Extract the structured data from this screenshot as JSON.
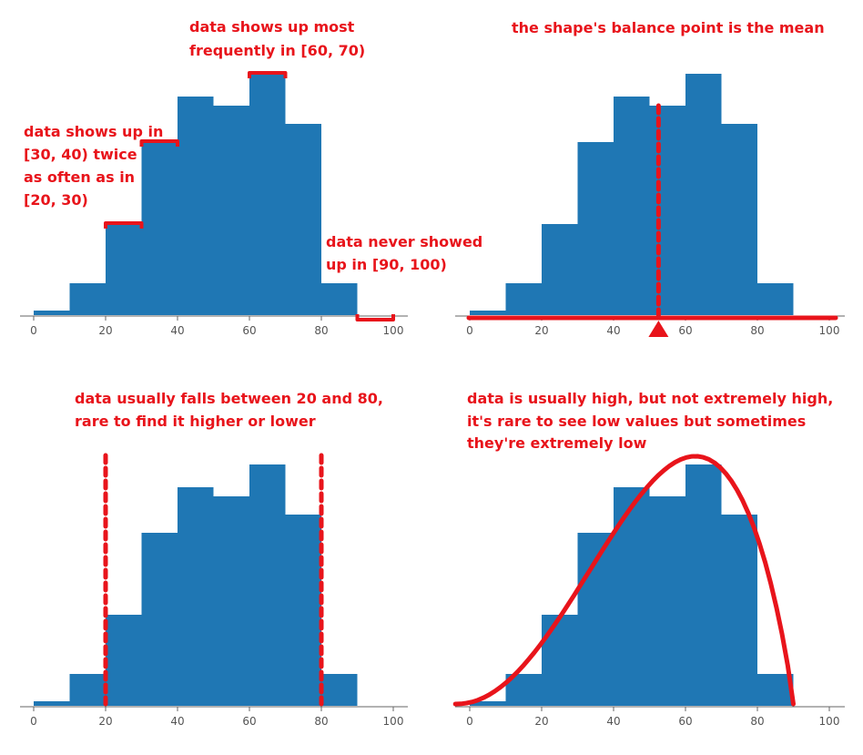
{
  "colors": {
    "bar": "#1f77b4",
    "annotation": "#e8141b",
    "axis": "#666666",
    "tick_text": "#555555"
  },
  "chart_data": [
    {
      "type": "bar",
      "bins": [
        [
          0,
          10
        ],
        [
          10,
          20
        ],
        [
          20,
          30
        ],
        [
          30,
          40
        ],
        [
          40,
          50
        ],
        [
          50,
          60
        ],
        [
          60,
          70
        ],
        [
          70,
          80
        ],
        [
          80,
          90
        ],
        [
          90,
          100
        ]
      ],
      "values": [
        1,
        7,
        20,
        38,
        48,
        46,
        53,
        42,
        7,
        0
      ],
      "xlim": [
        0,
        100
      ],
      "ylim": [
        0,
        56
      ],
      "x_ticks": [
        "0",
        "20",
        "40",
        "60",
        "80",
        "100"
      ],
      "annotations": [
        "data shows up most",
        "frequently in [60, 70)",
        "data shows up in",
        "[30, 40) twice",
        "as often as in",
        "[20, 30)",
        "data never showed",
        "up in [90, 100)"
      ]
    },
    {
      "type": "bar",
      "bins": [
        [
          0,
          10
        ],
        [
          10,
          20
        ],
        [
          20,
          30
        ],
        [
          30,
          40
        ],
        [
          40,
          50
        ],
        [
          50,
          60
        ],
        [
          60,
          70
        ],
        [
          70,
          80
        ],
        [
          80,
          90
        ],
        [
          90,
          100
        ]
      ],
      "values": [
        1,
        7,
        20,
        38,
        48,
        46,
        53,
        42,
        7,
        0
      ],
      "xlim": [
        0,
        100
      ],
      "ylim": [
        0,
        56
      ],
      "x_ticks": [
        "0",
        "20",
        "40",
        "60",
        "80",
        "100"
      ],
      "mean_marker": 52.5,
      "annotations": [
        "the shape's balance point is the mean"
      ]
    },
    {
      "type": "bar",
      "bins": [
        [
          0,
          10
        ],
        [
          10,
          20
        ],
        [
          20,
          30
        ],
        [
          30,
          40
        ],
        [
          40,
          50
        ],
        [
          50,
          60
        ],
        [
          60,
          70
        ],
        [
          70,
          80
        ],
        [
          80,
          90
        ],
        [
          90,
          100
        ]
      ],
      "values": [
        1,
        7,
        20,
        38,
        48,
        46,
        53,
        42,
        7,
        0
      ],
      "xlim": [
        0,
        100
      ],
      "ylim": [
        0,
        56
      ],
      "x_ticks": [
        "0",
        "20",
        "40",
        "60",
        "80",
        "100"
      ],
      "range_markers": [
        20,
        80
      ],
      "annotations": [
        "data usually falls between 20 and 80,",
        "rare to find it higher or lower"
      ]
    },
    {
      "type": "bar",
      "bins": [
        [
          0,
          10
        ],
        [
          10,
          20
        ],
        [
          20,
          30
        ],
        [
          30,
          40
        ],
        [
          40,
          50
        ],
        [
          50,
          60
        ],
        [
          60,
          70
        ],
        [
          70,
          80
        ],
        [
          80,
          90
        ],
        [
          90,
          100
        ]
      ],
      "values": [
        1,
        7,
        20,
        38,
        48,
        46,
        53,
        42,
        7,
        0
      ],
      "xlim": [
        0,
        100
      ],
      "ylim": [
        0,
        56
      ],
      "x_ticks": [
        "0",
        "20",
        "40",
        "60",
        "80",
        "100"
      ],
      "curve_peak_x": 60,
      "annotations": [
        "data is usually high, but not extremely high,",
        "it's rare to see low values but sometimes",
        "they're extremely low"
      ]
    }
  ]
}
